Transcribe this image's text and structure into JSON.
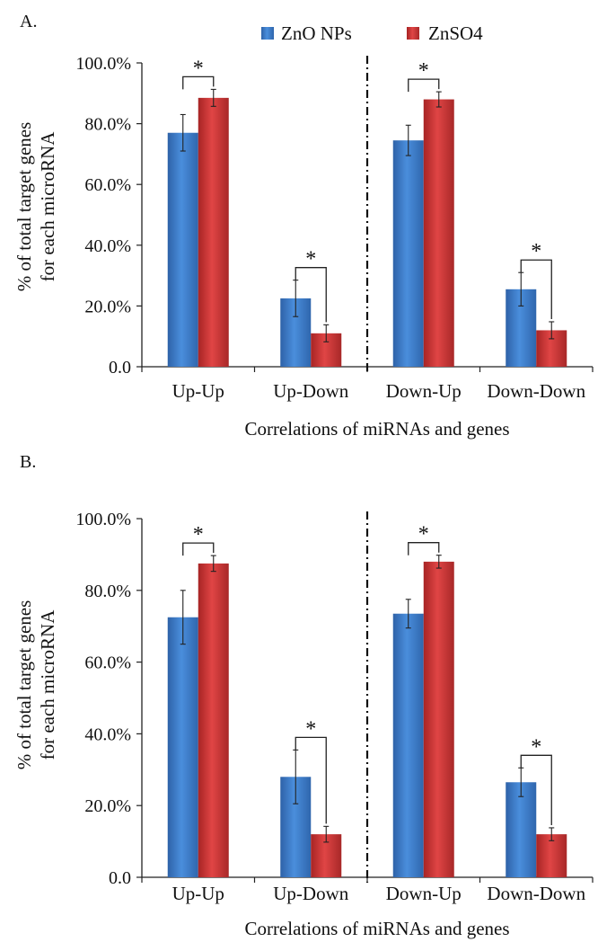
{
  "legend": [
    {
      "name": "ZnO NPs",
      "color": "#3f80d0"
    },
    {
      "name": "ZnSO4",
      "color": "#d43a3a"
    }
  ],
  "chart_data": [
    {
      "panel": "A.",
      "type": "bar",
      "categories": [
        "Up-Up",
        "Up-Down",
        "Down-Up",
        "Down-Down"
      ],
      "series": [
        {
          "name": "ZnO NPs",
          "values": [
            77.0,
            22.5,
            74.5,
            25.5
          ],
          "errors": [
            6.0,
            6.0,
            5.0,
            5.5
          ]
        },
        {
          "name": "ZnSO4",
          "values": [
            88.5,
            11.0,
            88.0,
            12.0
          ],
          "errors": [
            2.8,
            2.8,
            2.5,
            2.8
          ]
        }
      ],
      "significance": [
        "*",
        "*",
        "*",
        "*"
      ],
      "ylim": [
        0,
        100
      ],
      "yticks": [
        "0.0",
        "20.0%",
        "40.0%",
        "60.0%",
        "80.0%",
        "100.0%"
      ],
      "xlabel": "Correlations of miRNAs and genes",
      "ylabel": [
        "% of total target genes",
        "for each microRNA"
      ],
      "divider_after_category": 1
    },
    {
      "panel": "B.",
      "type": "bar",
      "categories": [
        "Up-Up",
        "Up-Down",
        "Down-Up",
        "Down-Down"
      ],
      "series": [
        {
          "name": "ZnO NPs",
          "values": [
            72.5,
            28.0,
            73.5,
            26.5
          ],
          "errors": [
            7.5,
            7.5,
            4.0,
            4.0
          ]
        },
        {
          "name": "ZnSO4",
          "values": [
            87.5,
            12.0,
            88.0,
            12.0
          ],
          "errors": [
            2.2,
            2.2,
            1.8,
            1.8
          ]
        }
      ],
      "significance": [
        "*",
        "*",
        "*",
        "*"
      ],
      "ylim": [
        0,
        100
      ],
      "yticks": [
        "0.0",
        "20.0%",
        "40.0%",
        "60.0%",
        "80.0%",
        "100.0%"
      ],
      "xlabel": "Correlations of miRNAs and genes",
      "ylabel": [
        "% of total target genes",
        "for each microRNA"
      ],
      "divider_after_category": 1
    }
  ]
}
